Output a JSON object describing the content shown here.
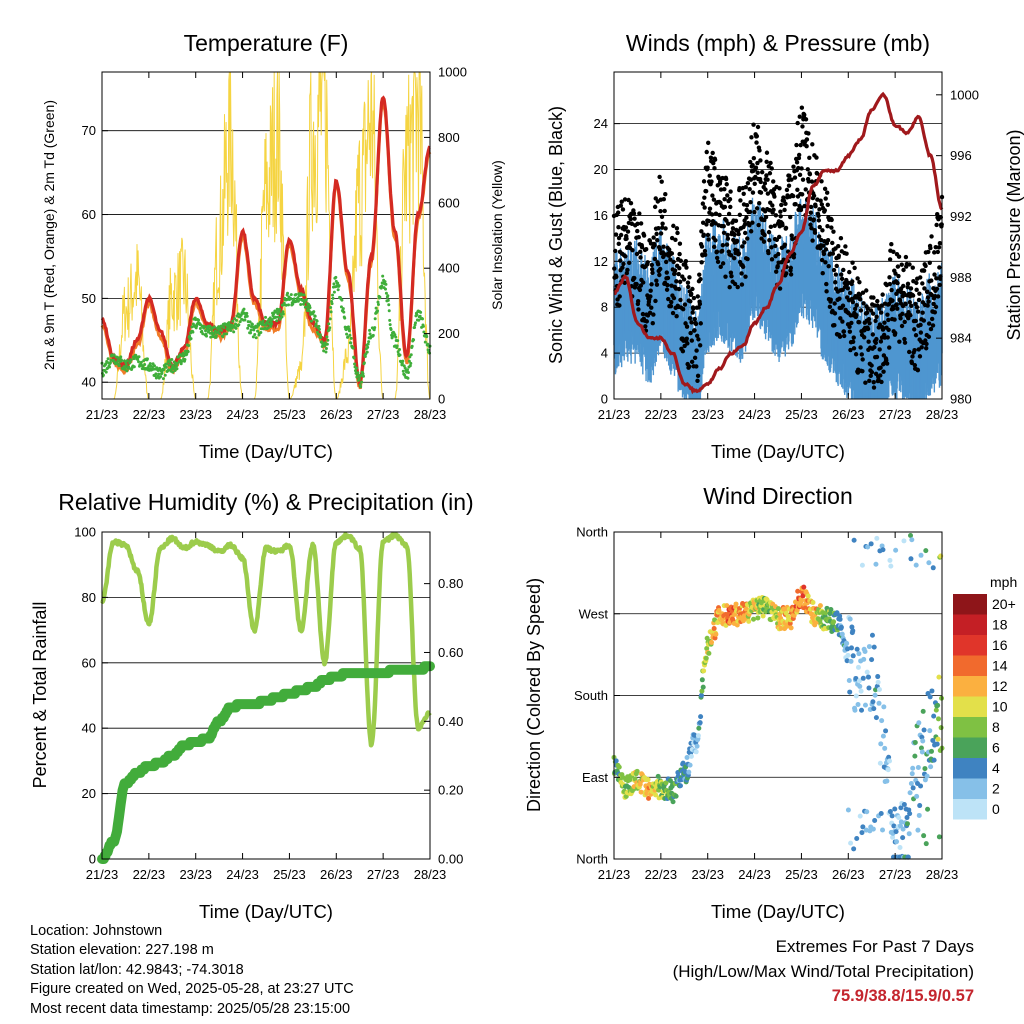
{
  "time_ticks": [
    "21/23",
    "22/23",
    "23/23",
    "24/23",
    "25/23",
    "26/23",
    "27/23",
    "28/23"
  ],
  "x_label": "Time (Day/UTC)",
  "panels": {
    "temperature": {
      "title": "Temperature (F)",
      "ylabel_left": "2m & 9m T (Red, Orange) & 2m Td (Green)",
      "ylabel_right": "Solar Insolation (Yellow)",
      "left_ticks": [
        "40",
        "50",
        "60",
        "70"
      ],
      "right_ticks": [
        "0",
        "200",
        "400",
        "600",
        "800",
        "1000"
      ]
    },
    "winds": {
      "title": "Winds (mph) & Pressure (mb)",
      "ylabel_left": "Sonic Wind & Gust (Blue, Black)",
      "ylabel_right": "Station Pressure (Maroon)",
      "left_ticks": [
        "0",
        "4",
        "8",
        "12",
        "16",
        "20",
        "24"
      ],
      "right_ticks": [
        "980",
        "984",
        "988",
        "992",
        "996",
        "1000"
      ]
    },
    "humidity": {
      "title": "Relative Humidity (%) & Precipitation (in)",
      "ylabel_left": "Percent & Total Rainfall",
      "left_ticks": [
        "0",
        "20",
        "40",
        "60",
        "80",
        "100"
      ],
      "right_ticks": [
        "0.00",
        "0.20",
        "0.40",
        "0.60",
        "0.80"
      ]
    },
    "direction": {
      "title": "Wind Direction",
      "ylabel_left": "Direction (Colored By Speed)",
      "left_ticks": [
        "North",
        "East",
        "South",
        "West",
        "North"
      ],
      "legend_title": "mph",
      "legend_labels": [
        "20+",
        "18",
        "16",
        "14",
        "12",
        "10",
        "8",
        "6",
        "4",
        "2",
        "0"
      ]
    }
  },
  "colors": {
    "temp_2m": "#d42a22",
    "temp_9m": "#f07c28",
    "dewpoint": "#3fae3a",
    "solar": "#f5d442",
    "wind": "#4f96d0",
    "gust": "#000000",
    "pressure": "#a0191c",
    "rh": "#9ccc4c",
    "precip": "#42ac3b",
    "speed_scale": [
      "#bde3f7",
      "#86c0e8",
      "#3f83c1",
      "#4aa35a",
      "#7fc143",
      "#e3e04a",
      "#fbb040",
      "#f16a2d",
      "#e0352a",
      "#c41f25",
      "#8e1519"
    ]
  },
  "chart_data": [
    {
      "type": "line",
      "title": "Temperature (F)",
      "xlabel": "Time (Day/UTC)",
      "ylabel": "2m & 9m T (Red, Orange) & 2m Td (Green)",
      "y2label": "Solar Insolation (Yellow)",
      "ylim": [
        38,
        77
      ],
      "y2lim": [
        0,
        1000
      ],
      "x": [
        0,
        0.25,
        0.5,
        0.75,
        1,
        1.25,
        1.5,
        1.75,
        2,
        2.25,
        2.5,
        2.75,
        3,
        3.25,
        3.5,
        3.75,
        4,
        4.25,
        4.5,
        4.75,
        5,
        5.25,
        5.5,
        5.75,
        6,
        6.25,
        6.5,
        6.75,
        7
      ],
      "series": [
        {
          "name": "2m T",
          "values": [
            47.5,
            43,
            42,
            45,
            50,
            46,
            42,
            44,
            50,
            47,
            46,
            47,
            58,
            50,
            47,
            47,
            57,
            51,
            47,
            45,
            64,
            53,
            40,
            55,
            74,
            58,
            43,
            60,
            68
          ]
        },
        {
          "name": "2m Td",
          "values": [
            41.5,
            43,
            42,
            42.5,
            42,
            41,
            42,
            43,
            47,
            46,
            46,
            46.5,
            48,
            46,
            47,
            48,
            50,
            50,
            48,
            44,
            52,
            46,
            40,
            46,
            52,
            45,
            41,
            48,
            44
          ]
        },
        {
          "name": "Solar Insolation",
          "values": [
            0,
            0,
            300,
            400,
            0,
            0,
            350,
            400,
            0,
            0,
            550,
            900,
            0,
            0,
            700,
            900,
            0,
            100,
            900,
            1000,
            0,
            150,
            700,
            950,
            0,
            0,
            800,
            1000,
            0
          ]
        }
      ]
    },
    {
      "type": "line",
      "title": "Winds (mph) & Pressure (mb)",
      "xlabel": "Time (Day/UTC)",
      "ylabel": "Sonic Wind & Gust (Blue, Black)",
      "y2label": "Station Pressure (Maroon)",
      "ylim": [
        0,
        28.5
      ],
      "y2lim": [
        980,
        1001.5
      ],
      "x": [
        0,
        0.25,
        0.5,
        0.75,
        1,
        1.25,
        1.5,
        1.75,
        2,
        2.25,
        2.5,
        2.75,
        3,
        3.25,
        3.5,
        3.75,
        4,
        4.25,
        4.5,
        4.75,
        5,
        5.25,
        5.5,
        5.75,
        6,
        6.25,
        6.5,
        6.75,
        7
      ],
      "series": [
        {
          "name": "Sonic Wind",
          "values": [
            7,
            8,
            8,
            6,
            9,
            7,
            4,
            2,
            9,
            10,
            9,
            8,
            12,
            10,
            8,
            9,
            12,
            11,
            8,
            6,
            5,
            3,
            2,
            3,
            5,
            4,
            3,
            5,
            6
          ]
        },
        {
          "name": "Gust",
          "values": [
            12,
            13,
            12,
            10,
            15,
            12,
            8,
            5,
            18,
            16,
            14,
            14,
            20,
            17,
            14,
            15,
            21,
            18,
            14,
            10,
            9,
            6,
            5,
            6,
            10,
            8,
            6,
            10,
            14
          ]
        },
        {
          "name": "Station Pressure",
          "values": [
            987,
            988,
            985,
            984,
            984,
            983,
            981,
            980.5,
            981,
            982,
            983,
            983.5,
            985,
            986,
            987.5,
            989.5,
            991,
            994,
            995,
            995,
            996,
            997,
            999,
            1000,
            998,
            997.5,
            998.5,
            996,
            992.5
          ]
        }
      ]
    },
    {
      "type": "line",
      "title": "Relative Humidity (%) & Precipitation (in)",
      "xlabel": "Time (Day/UTC)",
      "ylabel": "Percent & Total Rainfall",
      "ylim": [
        0,
        100
      ],
      "y2lim": [
        0,
        0.95
      ],
      "x": [
        0,
        0.25,
        0.5,
        0.75,
        1,
        1.25,
        1.5,
        1.75,
        2,
        2.25,
        2.5,
        2.75,
        3,
        3.25,
        3.5,
        3.75,
        4,
        4.25,
        4.5,
        4.75,
        5,
        5.25,
        5.5,
        5.75,
        6,
        6.25,
        6.5,
        6.75,
        7
      ],
      "series": [
        {
          "name": "Relative Humidity",
          "values": [
            79,
            97,
            96,
            88,
            72,
            95,
            98,
            95,
            97,
            96,
            94,
            96,
            92,
            70,
            95,
            94,
            96,
            70,
            96,
            60,
            97,
            99,
            95,
            35,
            97,
            99,
            96,
            40,
            45
          ]
        },
        {
          "name": "Total Rainfall",
          "values": [
            0,
            0.05,
            0.22,
            0.25,
            0.27,
            0.28,
            0.3,
            0.33,
            0.34,
            0.35,
            0.4,
            0.44,
            0.45,
            0.45,
            0.46,
            0.47,
            0.48,
            0.49,
            0.5,
            0.52,
            0.53,
            0.54,
            0.54,
            0.54,
            0.54,
            0.55,
            0.55,
            0.55,
            0.56
          ]
        }
      ]
    },
    {
      "type": "scatter",
      "title": "Wind Direction",
      "xlabel": "Time (Day/UTC)",
      "ylabel": "Direction (Colored By Speed)",
      "ylim": [
        0,
        360
      ],
      "y_categories": [
        "North",
        "East",
        "South",
        "West",
        "North"
      ],
      "legend_title": "mph",
      "legend_placement": "right",
      "x": [
        0,
        0.25,
        0.5,
        0.75,
        1,
        1.25,
        1.5,
        1.75,
        2,
        2.25,
        2.5,
        2.75,
        3,
        3.25,
        3.5,
        3.75,
        4,
        4.25,
        4.5,
        4.75,
        5,
        5.25,
        5.5,
        5.75,
        6,
        6.25,
        6.5,
        6.75,
        7
      ],
      "series": [
        {
          "name": "Direction",
          "values": [
            105,
            80,
            85,
            75,
            80,
            75,
            95,
            130,
            235,
            265,
            270,
            270,
            275,
            280,
            265,
            265,
            290,
            270,
            265,
            260,
            230,
            190,
            210,
            130,
            20,
            30,
            110,
            140,
            165
          ]
        },
        {
          "name": "Speed",
          "values": [
            6,
            8,
            10,
            12,
            8,
            6,
            4,
            2,
            10,
            12,
            14,
            12,
            10,
            8,
            10,
            12,
            14,
            12,
            8,
            6,
            2,
            2,
            3,
            2,
            2,
            3,
            4,
            4,
            8
          ]
        }
      ]
    }
  ],
  "info": {
    "location": "Location: Johnstown",
    "elevation": "Station elevation: 227.198 m",
    "latlon": "Station lat/lon: 42.9843; -74.3018",
    "created": "Figure created on Wed, 2025-05-28, at 23:27 UTC",
    "recent": "Most recent data timestamp: 2025/05/28 23:15:00"
  },
  "extremes": {
    "title": "Extremes For Past 7 Days",
    "subtitle": "(High/Low/Max Wind/Total Precipitation)",
    "values": "75.9/38.8/15.9/0.57"
  }
}
